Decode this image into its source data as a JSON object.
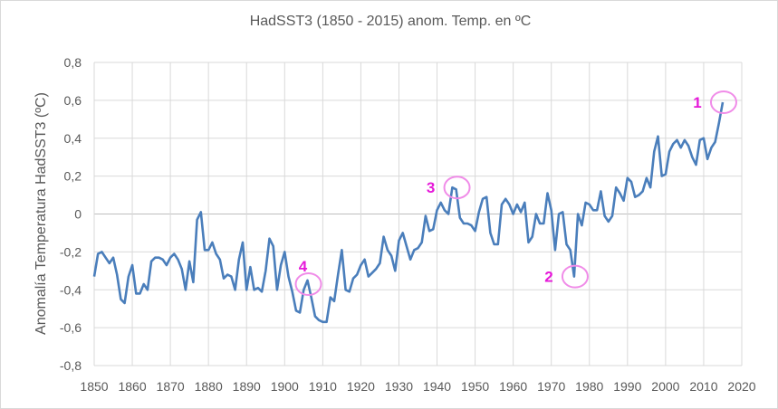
{
  "chart_data": {
    "type": "line",
    "title": "HadSST3 (1850 - 2015) anom. Temp. en ºC",
    "xlabel": "",
    "ylabel": "Anomalía Temperatura HadSST3 (ºC)",
    "xlim": [
      1850,
      2020
    ],
    "ylim": [
      -0.8,
      0.8
    ],
    "grid": true,
    "legend": "none",
    "x_ticks": [
      1850,
      1860,
      1870,
      1880,
      1890,
      1900,
      1910,
      1920,
      1930,
      1940,
      1950,
      1960,
      1970,
      1980,
      1990,
      2000,
      2010,
      2020
    ],
    "y_ticks": [
      -0.8,
      -0.6,
      -0.4,
      -0.2,
      0,
      0.2,
      0.4,
      0.6,
      0.8
    ],
    "y_tick_labels": [
      "-0,8",
      "-0,6",
      "-0,4",
      "-0,2",
      "0",
      "0,2",
      "0,4",
      "0,6",
      "0,8"
    ],
    "series": [
      {
        "name": "HadSST3",
        "color": "#4a7ebb",
        "x_start": 1850,
        "values": [
          -0.33,
          -0.21,
          -0.2,
          -0.23,
          -0.26,
          -0.23,
          -0.32,
          -0.45,
          -0.47,
          -0.33,
          -0.27,
          -0.42,
          -0.42,
          -0.37,
          -0.4,
          -0.25,
          -0.23,
          -0.23,
          -0.24,
          -0.27,
          -0.23,
          -0.21,
          -0.24,
          -0.29,
          -0.4,
          -0.25,
          -0.36,
          -0.03,
          0.01,
          -0.19,
          -0.19,
          -0.15,
          -0.21,
          -0.24,
          -0.34,
          -0.32,
          -0.33,
          -0.4,
          -0.24,
          -0.15,
          -0.4,
          -0.28,
          -0.4,
          -0.39,
          -0.41,
          -0.3,
          -0.13,
          -0.17,
          -0.4,
          -0.27,
          -0.2,
          -0.33,
          -0.41,
          -0.51,
          -0.52,
          -0.4,
          -0.35,
          -0.44,
          -0.54,
          -0.56,
          -0.57,
          -0.57,
          -0.44,
          -0.46,
          -0.32,
          -0.19,
          -0.4,
          -0.41,
          -0.34,
          -0.32,
          -0.27,
          -0.24,
          -0.33,
          -0.31,
          -0.29,
          -0.26,
          -0.12,
          -0.19,
          -0.22,
          -0.3,
          -0.14,
          -0.1,
          -0.17,
          -0.24,
          -0.19,
          -0.18,
          -0.15,
          -0.01,
          -0.09,
          -0.08,
          0.02,
          0.06,
          0.02,
          0.0,
          0.14,
          0.13,
          -0.02,
          -0.05,
          -0.05,
          -0.06,
          -0.09,
          0.01,
          0.08,
          0.09,
          -0.1,
          -0.16,
          -0.16,
          0.05,
          0.08,
          0.05,
          0.0,
          0.05,
          0.01,
          0.06,
          -0.15,
          -0.12,
          0.0,
          -0.05,
          -0.05,
          0.11,
          0.02,
          -0.19,
          0.0,
          0.01,
          -0.16,
          -0.19,
          -0.33,
          0.0,
          -0.06,
          0.06,
          0.05,
          0.02,
          0.02,
          0.12,
          -0.01,
          -0.04,
          -0.01,
          0.14,
          0.11,
          0.07,
          0.19,
          0.17,
          0.09,
          0.1,
          0.12,
          0.19,
          0.14,
          0.33,
          0.41,
          0.2,
          0.21,
          0.33,
          0.37,
          0.39,
          0.35,
          0.39,
          0.36,
          0.3,
          0.26,
          0.39,
          0.4,
          0.29,
          0.35,
          0.38,
          0.48,
          0.59
        ]
      }
    ],
    "annotations": [
      {
        "label": "1",
        "x": 2015,
        "y": 0.59,
        "side": "left"
      },
      {
        "label": "2",
        "x": 1976,
        "y": -0.33,
        "side": "left"
      },
      {
        "label": "3",
        "x": 1945,
        "y": 0.14,
        "side": "left"
      },
      {
        "label": "4",
        "x": 1906,
        "y": -0.37,
        "side": "above"
      }
    ],
    "annotation_color": "#e619d9",
    "circle_color": "#f08ce8"
  }
}
